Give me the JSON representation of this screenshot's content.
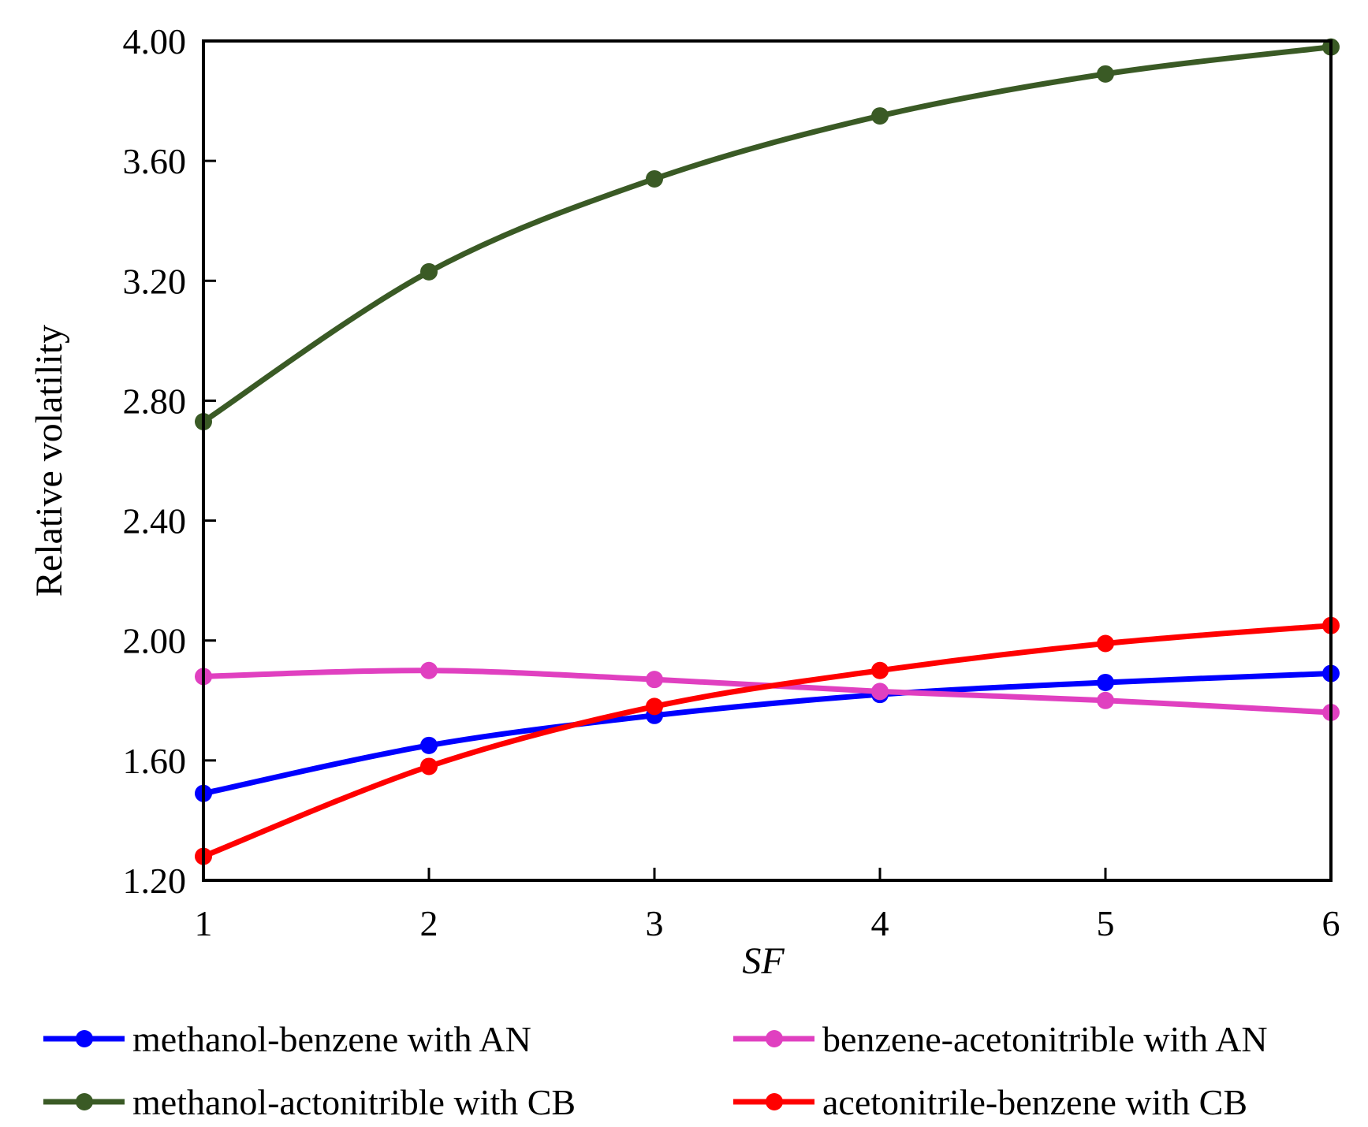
{
  "chart_data": {
    "type": "line",
    "title": "",
    "xlabel": "SF",
    "ylabel": "Relative volatility",
    "x": [
      1,
      2,
      3,
      4,
      5,
      6
    ],
    "xlim": [
      1,
      6
    ],
    "ylim": [
      1.2,
      4.0
    ],
    "x_ticks": [
      "1",
      "2",
      "3",
      "4",
      "5",
      "6"
    ],
    "y_ticks": [
      "1.20",
      "1.60",
      "2.00",
      "2.40",
      "2.80",
      "3.20",
      "3.60",
      "4.00"
    ],
    "grid": false,
    "legend_position": "bottom",
    "series": [
      {
        "name": "methanol-benzene with AN",
        "color": "#0000ff",
        "values": [
          1.49,
          1.65,
          1.75,
          1.82,
          1.86,
          1.89
        ]
      },
      {
        "name": "benzene-acetonitrible with AN",
        "color": "#e040c0",
        "values": [
          1.88,
          1.9,
          1.87,
          1.83,
          1.8,
          1.76
        ]
      },
      {
        "name": "methanol-actonitrible with CB",
        "color": "#3a5a25",
        "values": [
          2.73,
          3.23,
          3.54,
          3.75,
          3.89,
          3.98
        ]
      },
      {
        "name": "acetonitrile-benzene with CB",
        "color": "#ff0000",
        "values": [
          1.28,
          1.58,
          1.78,
          1.9,
          1.99,
          2.05
        ]
      }
    ]
  }
}
